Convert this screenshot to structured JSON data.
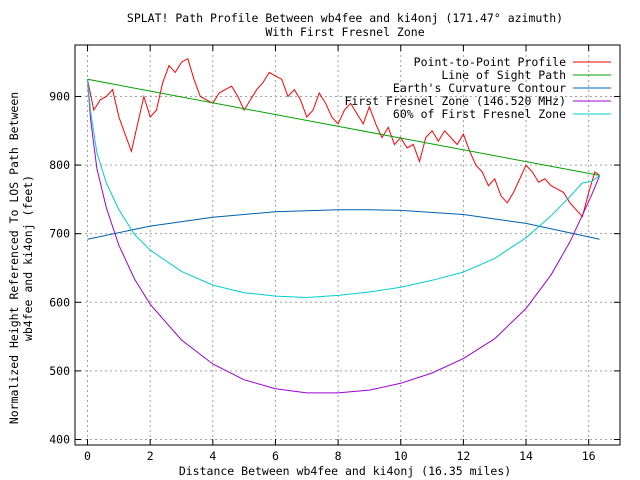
{
  "chart_data": {
    "type": "line",
    "title": "SPLAT! Path Profile Between wb4fee and ki4onj (171.47° azimuth)",
    "subtitle": "With First Fresnel Zone",
    "xlabel": "Distance Between wb4fee and ki4onj (16.35 miles)",
    "ylabel_line1": "Normalized Height Referenced To LOS Path Between",
    "ylabel_line2": "wb4fee and ki4onj (feet)",
    "xlim": [
      -0.4,
      17.0
    ],
    "ylim": [
      392,
      975
    ],
    "xticks": [
      0,
      2,
      4,
      6,
      8,
      10,
      12,
      14,
      16
    ],
    "yticks": [
      400,
      500,
      600,
      700,
      800,
      900
    ],
    "grid": true,
    "legend_position": "top-right",
    "series": [
      {
        "name": "Point-to-Point Profile",
        "color": "#ff0000",
        "x": [
          0.0,
          0.2,
          0.4,
          0.6,
          0.8,
          1.0,
          1.2,
          1.4,
          1.6,
          1.8,
          2.0,
          2.2,
          2.4,
          2.6,
          2.8,
          3.0,
          3.2,
          3.4,
          3.6,
          3.8,
          4.0,
          4.2,
          4.4,
          4.6,
          4.8,
          5.0,
          5.2,
          5.4,
          5.6,
          5.8,
          6.0,
          6.2,
          6.4,
          6.6,
          6.8,
          7.0,
          7.2,
          7.4,
          7.6,
          7.8,
          8.0,
          8.2,
          8.4,
          8.6,
          8.8,
          9.0,
          9.2,
          9.4,
          9.6,
          9.8,
          10.0,
          10.2,
          10.4,
          10.6,
          10.8,
          11.0,
          11.2,
          11.4,
          11.6,
          11.8,
          12.0,
          12.2,
          12.4,
          12.6,
          12.8,
          13.0,
          13.2,
          13.4,
          13.6,
          13.8,
          14.0,
          14.2,
          14.4,
          14.6,
          14.8,
          15.0,
          15.2,
          15.4,
          15.6,
          15.8,
          16.0,
          16.2,
          16.35
        ],
        "values": [
          925,
          880,
          895,
          900,
          910,
          870,
          845,
          820,
          860,
          900,
          870,
          880,
          920,
          945,
          935,
          950,
          955,
          925,
          900,
          895,
          890,
          905,
          910,
          915,
          900,
          880,
          895,
          910,
          920,
          935,
          930,
          925,
          900,
          910,
          895,
          870,
          880,
          905,
          890,
          870,
          860,
          880,
          890,
          875,
          860,
          885,
          860,
          840,
          855,
          830,
          840,
          825,
          830,
          805,
          840,
          850,
          835,
          850,
          840,
          830,
          845,
          820,
          800,
          790,
          770,
          780,
          755,
          745,
          760,
          780,
          800,
          790,
          775,
          780,
          770,
          765,
          760,
          745,
          735,
          725,
          760,
          790,
          785
        ]
      },
      {
        "name": "Line of Sight Path",
        "color": "#00a000",
        "x": [
          0.0,
          16.35
        ],
        "values": [
          925,
          785
        ]
      },
      {
        "name": "Earth's Curvature Contour",
        "color": "#0060ad",
        "x": [
          0.0,
          2.0,
          4.0,
          6.0,
          8.0,
          9.0,
          10.0,
          12.0,
          14.0,
          16.35
        ],
        "values": [
          692,
          711,
          724,
          732,
          735,
          735,
          734,
          728,
          715,
          692
        ]
      },
      {
        "name": "First Fresnel Zone (146.520 MHz)",
        "color": "#a000d0",
        "x": [
          0.0,
          0.1,
          0.3,
          0.6,
          1.0,
          1.5,
          2.0,
          3.0,
          4.0,
          5.0,
          6.0,
          7.0,
          8.0,
          9.0,
          10.0,
          11.0,
          12.0,
          13.0,
          14.0,
          14.8,
          15.4,
          15.8,
          16.1,
          16.3,
          16.35
        ],
        "values": [
          925,
          865,
          795,
          738,
          683,
          634,
          597,
          545,
          510,
          487,
          474,
          468,
          468,
          472,
          482,
          497,
          518,
          547,
          591,
          640,
          688,
          727,
          757,
          779,
          785
        ]
      },
      {
        "name": "60% of First Fresnel Zone",
        "color": "#00d0d0",
        "x": [
          0.0,
          0.1,
          0.3,
          0.6,
          1.0,
          1.5,
          2.0,
          3.0,
          4.0,
          5.0,
          6.0,
          7.0,
          8.0,
          9.0,
          10.0,
          11.0,
          12.0,
          13.0,
          14.0,
          14.8,
          15.4,
          15.8,
          16.1,
          16.3,
          16.35
        ],
        "values": [
          925,
          877,
          818,
          774,
          735,
          699,
          676,
          645,
          625,
          614,
          609,
          607,
          610,
          615,
          622,
          632,
          644,
          664,
          694,
          726,
          754,
          774,
          776,
          783,
          785
        ]
      }
    ]
  }
}
